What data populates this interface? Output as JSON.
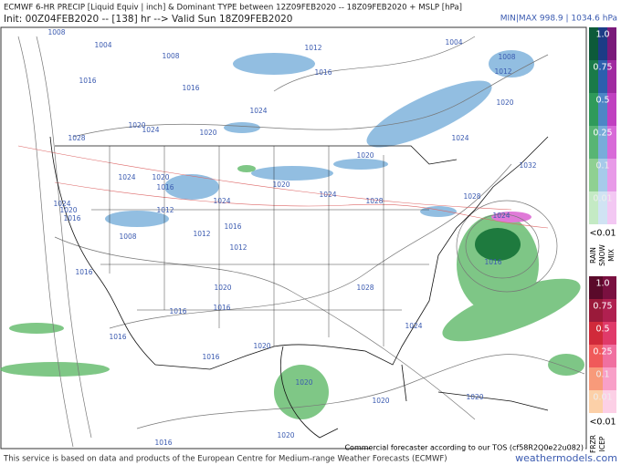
{
  "header": {
    "title": "ECMWF 6-HR PRECIP [Liquid Equiv | inch] & Dominant TYPE between 12Z09FEB2020 -- 18Z09FEB2020 + MSLP [hPa]",
    "minmax": "MIN|MAX 998.9 | 1034.6 hPa",
    "init": "Init: 00Z04FEB2020 -- [138] hr --> Valid Sun 18Z09FEB2020"
  },
  "map": {
    "isobar_labels": [
      "1008",
      "1004",
      "1012",
      "1004",
      "1008",
      "1012",
      "1008",
      "1016",
      "1016",
      "1016",
      "1024",
      "1020",
      "1020",
      "1024",
      "1028",
      "1020",
      "1024",
      "1020",
      "1024",
      "1020",
      "1016",
      "1024",
      "1020",
      "1024",
      "1028",
      "1028",
      "1024",
      "1020",
      "1016",
      "1012",
      "1012",
      "1008",
      "1016",
      "1012",
      "1024",
      "1016",
      "1016",
      "1020",
      "1028",
      "1016",
      "1016",
      "1024",
      "1016",
      "1020",
      "1016",
      "1020",
      "1020",
      "1020",
      "1016",
      "1020",
      "1032"
    ],
    "tos_note": "Commercial forecaster according to our TOS (cf58R2Q0e22u082)"
  },
  "legend": {
    "rain_snow_mix": {
      "levels": [
        "1.0",
        "0.75",
        "0.5",
        "0.25",
        "0.1",
        "0.01"
      ],
      "below": "<0.01",
      "types": [
        "RAIN",
        "SNOW",
        "MIX"
      ]
    },
    "frzr_icep": {
      "levels": [
        "1.0",
        "0.75",
        "0.5",
        "0.25",
        "0.1",
        "0.01"
      ],
      "below": "<0.01",
      "types": [
        "FRZR",
        "ICEP"
      ]
    }
  },
  "footer": {
    "credit": "This service is based on data and products of the European Centre for Medium-range Weather Forecasts (ECMWF)",
    "site": "weathermodels.com"
  }
}
